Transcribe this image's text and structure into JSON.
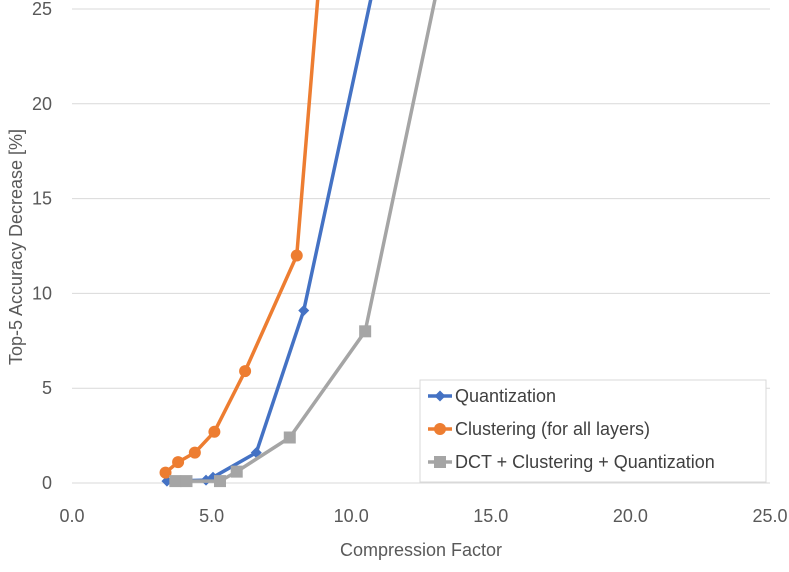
{
  "chart_data": {
    "type": "line",
    "xlabel": "Compression Factor",
    "ylabel": "Top-5 Accuracy Decrease [%]",
    "xlim": [
      0,
      25
    ],
    "ylim": [
      0,
      25
    ],
    "x_ticks": [
      "0.0",
      "5.0",
      "10.0",
      "15.0",
      "20.0",
      "25.0"
    ],
    "y_ticks": [
      "0",
      "5",
      "10",
      "15",
      "20",
      "25"
    ],
    "grid": "horizontal",
    "legend_position": "bottom-right",
    "series": [
      {
        "name": "Quantization",
        "color": "#4472C4",
        "marker": "diamond",
        "points": [
          [
            3.4,
            0.1
          ],
          [
            4.8,
            0.15
          ],
          [
            5.05,
            0.3
          ],
          [
            6.6,
            1.6
          ],
          [
            8.3,
            9.1
          ],
          [
            10.7,
            25.5
          ]
        ]
      },
      {
        "name": "Clustering (for all layers)",
        "color": "#ED7D31",
        "marker": "circle",
        "points": [
          [
            3.35,
            0.55
          ],
          [
            3.8,
            1.1
          ],
          [
            4.4,
            1.6
          ],
          [
            5.1,
            2.7
          ],
          [
            6.2,
            5.9
          ],
          [
            8.05,
            12.0
          ],
          [
            8.8,
            25.5
          ]
        ]
      },
      {
        "name": "DCT + Clustering + Quantization",
        "color": "#A5A5A5",
        "marker": "square",
        "points": [
          [
            3.7,
            0.1
          ],
          [
            4.1,
            0.1
          ],
          [
            5.3,
            0.1
          ],
          [
            5.9,
            0.6
          ],
          [
            7.8,
            2.4
          ],
          [
            10.5,
            8.0
          ],
          [
            13.0,
            25.5
          ]
        ]
      }
    ]
  }
}
